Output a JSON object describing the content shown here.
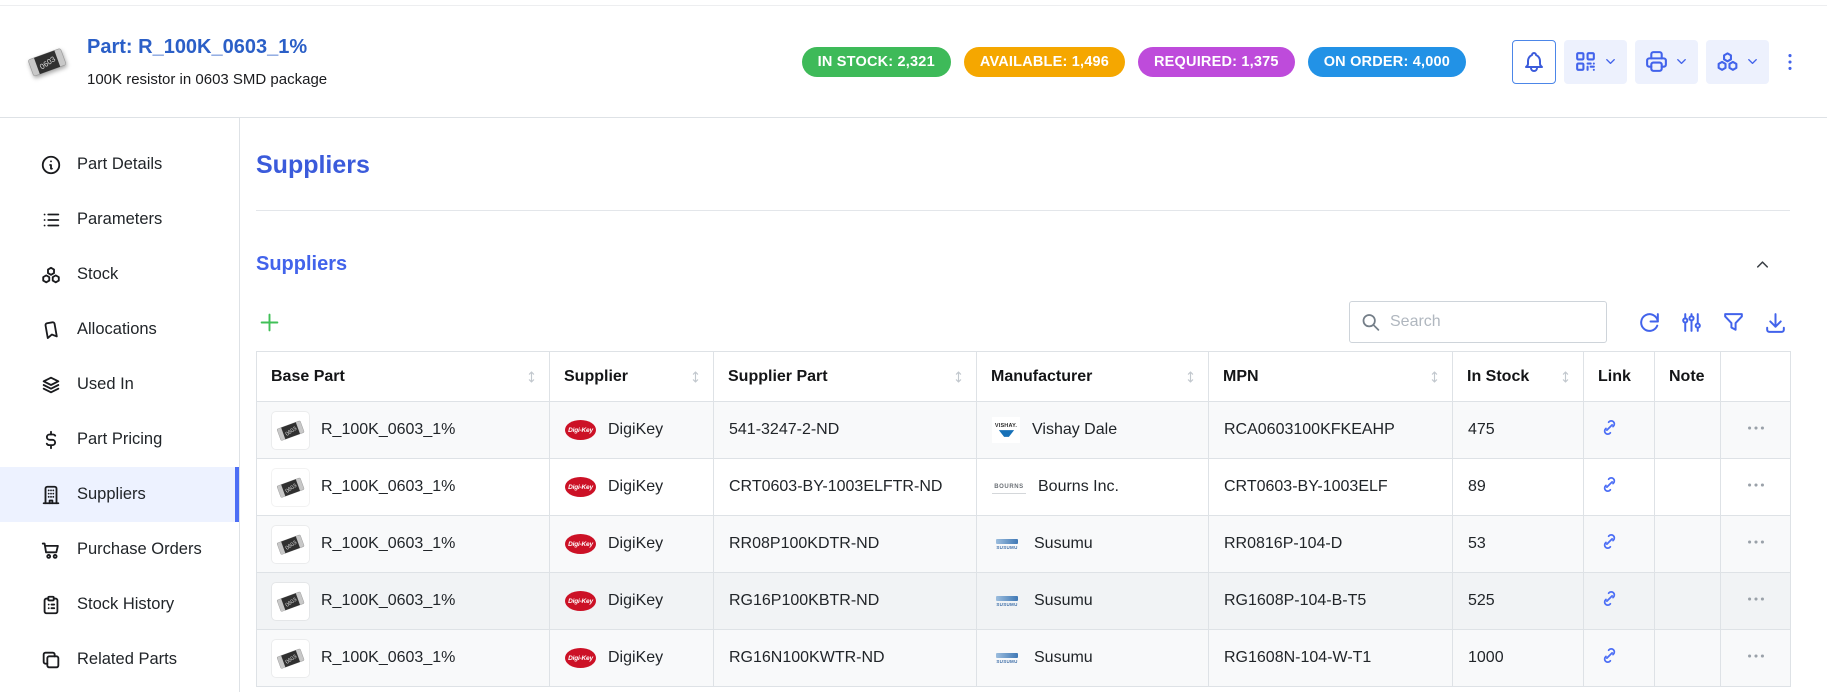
{
  "header": {
    "part_title": "Part: R_100K_0603_1%",
    "part_description": "100K resistor in 0603 SMD package",
    "part_image": "resistor-0603-thumbnail",
    "badges": [
      {
        "name": "in-stock",
        "label": "IN STOCK: 2,321",
        "color": "#3eba59"
      },
      {
        "name": "available",
        "label": "AVAILABLE: 1,496",
        "color": "#f5a700"
      },
      {
        "name": "required",
        "label": "REQUIRED: 1,375",
        "color": "#be4bdb"
      },
      {
        "name": "on-order",
        "label": "ON ORDER: 4,000",
        "color": "#2292e6"
      }
    ],
    "action_buttons": [
      {
        "name": "notifications",
        "icon": "bell-icon",
        "dropdown": false
      },
      {
        "name": "barcode-actions",
        "icon": "qr-code-icon",
        "dropdown": true
      },
      {
        "name": "print-actions",
        "icon": "printer-icon",
        "dropdown": true
      },
      {
        "name": "stock-actions",
        "icon": "stock-cubes-icon",
        "dropdown": true
      },
      {
        "name": "more-actions",
        "icon": "dots-vertical-icon",
        "dropdown": false
      }
    ]
  },
  "sidebar": {
    "items": [
      {
        "label": "Part Details",
        "icon": "info-circle-icon",
        "active": false
      },
      {
        "label": "Parameters",
        "icon": "list-icon",
        "active": false
      },
      {
        "label": "Stock",
        "icon": "stock-cubes-icon",
        "active": false
      },
      {
        "label": "Allocations",
        "icon": "bookmark-icon",
        "active": false
      },
      {
        "label": "Used In",
        "icon": "stack-icon",
        "active": false
      },
      {
        "label": "Part Pricing",
        "icon": "currency-dollar-icon",
        "active": false
      },
      {
        "label": "Suppliers",
        "icon": "building-icon",
        "active": true
      },
      {
        "label": "Purchase Orders",
        "icon": "shopping-cart-icon",
        "active": false
      },
      {
        "label": "Stock History",
        "icon": "clipboard-list-icon",
        "active": false
      },
      {
        "label": "Related Parts",
        "icon": "copy-icon",
        "active": false
      }
    ]
  },
  "main": {
    "page_title": "Suppliers",
    "panel": {
      "title": "Suppliers",
      "collapse_icon": "chevron-up-icon",
      "add_button_icon": "plus-icon",
      "search": {
        "placeholder": "Search",
        "value": "",
        "icon": "search-icon"
      },
      "toolbar_icons": [
        "refresh-icon",
        "adjustments-icon",
        "filter-icon",
        "download-icon"
      ],
      "table": {
        "columns": [
          {
            "label": "Base Part",
            "sortable": true
          },
          {
            "label": "Supplier",
            "sortable": true
          },
          {
            "label": "Supplier Part",
            "sortable": true
          },
          {
            "label": "Manufacturer",
            "sortable": true
          },
          {
            "label": "MPN",
            "sortable": true
          },
          {
            "label": "In Stock",
            "sortable": true
          },
          {
            "label": "Link",
            "sortable": false
          },
          {
            "label": "Note",
            "sortable": false
          },
          {
            "label": "",
            "sortable": false
          }
        ],
        "rows": [
          {
            "base_part": "R_100K_0603_1%",
            "supplier": "DigiKey",
            "supplier_logo": "digikey-logo",
            "supplier_part": "541-3247-2-ND",
            "manufacturer": "Vishay Dale",
            "manufacturer_logo": "vishay-logo",
            "mpn": "RCA0603100KFKEAHP",
            "in_stock": "475",
            "link": true,
            "note": "",
            "hovered": false
          },
          {
            "base_part": "R_100K_0603_1%",
            "supplier": "DigiKey",
            "supplier_logo": "digikey-logo",
            "supplier_part": "CRT0603-BY-1003ELFTR-ND",
            "manufacturer": "Bourns Inc.",
            "manufacturer_logo": "bourns-logo",
            "mpn": "CRT0603-BY-1003ELF",
            "in_stock": "89",
            "link": true,
            "note": "",
            "hovered": false
          },
          {
            "base_part": "R_100K_0603_1%",
            "supplier": "DigiKey",
            "supplier_logo": "digikey-logo",
            "supplier_part": "RR08P100KDTR-ND",
            "manufacturer": "Susumu",
            "manufacturer_logo": "susumu-logo",
            "mpn": "RR0816P-104-D",
            "in_stock": "53",
            "link": true,
            "note": "",
            "hovered": false
          },
          {
            "base_part": "R_100K_0603_1%",
            "supplier": "DigiKey",
            "supplier_logo": "digikey-logo",
            "supplier_part": "RG16P100KBTR-ND",
            "manufacturer": "Susumu",
            "manufacturer_logo": "susumu-logo",
            "mpn": "RG1608P-104-B-T5",
            "in_stock": "525",
            "link": true,
            "note": "",
            "hovered": true
          },
          {
            "base_part": "R_100K_0603_1%",
            "supplier": "DigiKey",
            "supplier_logo": "digikey-logo",
            "supplier_part": "RG16N100KWTR-ND",
            "manufacturer": "Susumu",
            "manufacturer_logo": "susumu-logo",
            "mpn": "RG1608N-104-W-T1",
            "in_stock": "1000",
            "link": true,
            "note": "",
            "hovered": false
          }
        ]
      }
    }
  },
  "colors": {
    "heading_accent": "#4263eb",
    "part_title": "#2b5fc7",
    "add_button": "#40c057",
    "toolbar_icon": "#4263eb",
    "active_nav_bg": "#edf2ff",
    "active_nav_indicator": "#4c6ef5",
    "table_border": "#dee2e6",
    "stripe_row": "#f8f9fa",
    "hover_row": "#f1f3f5"
  }
}
